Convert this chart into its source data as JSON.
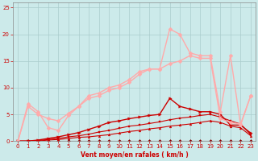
{
  "background_color": "#cceaea",
  "grid_color": "#aacccc",
  "xlabel": "Vent moyen/en rafales ( km/h )",
  "xlabel_color": "#cc0000",
  "tick_color": "#cc0000",
  "xlim": [
    -0.5,
    23.5
  ],
  "ylim": [
    0,
    26
  ],
  "yticks": [
    0,
    5,
    10,
    15,
    20,
    25
  ],
  "xticks": [
    0,
    1,
    2,
    3,
    4,
    5,
    6,
    7,
    8,
    9,
    10,
    11,
    12,
    13,
    14,
    15,
    16,
    17,
    18,
    19,
    20,
    21,
    22,
    23
  ],
  "lines": [
    {
      "x": [
        0,
        1,
        2,
        3,
        4,
        5,
        6,
        7,
        8,
        9,
        10,
        11,
        12,
        13,
        14,
        15,
        16,
        17,
        18,
        19,
        20,
        21,
        22,
        23
      ],
      "y": [
        0,
        0,
        0,
        0,
        0,
        0,
        0,
        0,
        0,
        0,
        0,
        0,
        0,
        0,
        0,
        0,
        0,
        0,
        0,
        0,
        0,
        0,
        0,
        0
      ],
      "color": "#880000",
      "marker": "D",
      "markersize": 2,
      "linewidth": 0.8
    },
    {
      "x": [
        0,
        1,
        2,
        3,
        4,
        5,
        6,
        7,
        8,
        9,
        10,
        11,
        12,
        13,
        14,
        15,
        16,
        17,
        18,
        19,
        20,
        21,
        22,
        23
      ],
      "y": [
        0,
        0,
        0,
        0.2,
        0.3,
        0.5,
        0.7,
        0.8,
        1.0,
        1.2,
        1.5,
        1.8,
        2.0,
        2.3,
        2.5,
        2.8,
        3.0,
        3.2,
        3.5,
        3.8,
        3.5,
        2.8,
        2.5,
        1.0
      ],
      "color": "#cc0000",
      "marker": "^",
      "markersize": 2,
      "linewidth": 0.8
    },
    {
      "x": [
        0,
        1,
        2,
        3,
        4,
        5,
        6,
        7,
        8,
        9,
        10,
        11,
        12,
        13,
        14,
        15,
        16,
        17,
        18,
        19,
        20,
        21,
        22,
        23
      ],
      "y": [
        0,
        0,
        0.1,
        0.3,
        0.5,
        0.8,
        1.0,
        1.3,
        1.7,
        2.0,
        2.4,
        2.8,
        3.0,
        3.3,
        3.6,
        4.0,
        4.3,
        4.5,
        4.8,
        5.0,
        4.5,
        3.8,
        3.2,
        1.2
      ],
      "color": "#cc0000",
      "marker": "s",
      "markersize": 2,
      "linewidth": 0.8
    },
    {
      "x": [
        0,
        1,
        2,
        3,
        4,
        5,
        6,
        7,
        8,
        9,
        10,
        11,
        12,
        13,
        14,
        15,
        16,
        17,
        18,
        19,
        20,
        21,
        22,
        23
      ],
      "y": [
        0,
        0,
        0.2,
        0.5,
        0.8,
        1.2,
        1.6,
        2.2,
        2.8,
        3.5,
        3.8,
        4.2,
        4.5,
        4.8,
        5.0,
        8.0,
        6.5,
        6.0,
        5.5,
        5.5,
        5.0,
        3.0,
        3.0,
        1.5
      ],
      "color": "#cc0000",
      "marker": ">",
      "markersize": 2.5,
      "linewidth": 1.0
    },
    {
      "x": [
        0,
        1,
        2,
        3,
        4,
        5,
        6,
        7,
        8,
        9,
        10,
        11,
        12,
        13,
        14,
        15,
        16,
        17,
        18,
        19,
        20,
        21,
        22,
        23
      ],
      "y": [
        0,
        6.5,
        5.0,
        4.2,
        3.8,
        5.2,
        6.5,
        8.0,
        8.5,
        9.5,
        10.0,
        11.0,
        12.5,
        13.5,
        13.5,
        14.5,
        15.0,
        16.0,
        15.5,
        15.5,
        4.2,
        3.5,
        3.2,
        8.5
      ],
      "color": "#ffaaaa",
      "marker": "D",
      "markersize": 2.5,
      "linewidth": 1.0
    },
    {
      "x": [
        0,
        1,
        2,
        3,
        4,
        5,
        6,
        7,
        8,
        9,
        10,
        11,
        12,
        13,
        14,
        15,
        16,
        17,
        18,
        19,
        20,
        21,
        22,
        23
      ],
      "y": [
        0,
        7.0,
        5.5,
        2.5,
        2.0,
        4.8,
        6.5,
        8.5,
        9.0,
        10.0,
        10.5,
        11.5,
        13.0,
        13.5,
        13.5,
        21.0,
        20.0,
        16.5,
        16.0,
        16.0,
        5.5,
        16.0,
        3.0,
        8.5
      ],
      "color": "#ffaaaa",
      "marker": "D",
      "markersize": 2.5,
      "linewidth": 1.0
    }
  ]
}
